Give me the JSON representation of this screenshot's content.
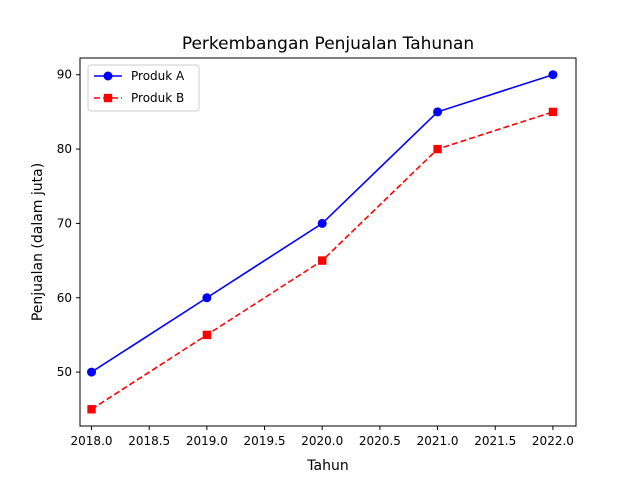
{
  "chart_data": {
    "type": "line",
    "title": "Perkembangan Penjualan Tahunan",
    "xlabel": "Tahun",
    "ylabel": "Penjualan (dalam juta)",
    "x": [
      2018,
      2019,
      2020,
      2021,
      2022
    ],
    "xlim": [
      2017.9,
      2022.2
    ],
    "ylim": [
      42.75,
      92.25
    ],
    "xticks": [
      2018.0,
      2018.5,
      2019.0,
      2019.5,
      2020.0,
      2020.5,
      2021.0,
      2021.5,
      2022.0
    ],
    "xtick_labels": [
      "2018.0",
      "2018.5",
      "2019.0",
      "2019.5",
      "2020.0",
      "2020.5",
      "2021.0",
      "2021.5",
      "2022.0"
    ],
    "yticks": [
      50,
      60,
      70,
      80,
      90
    ],
    "ytick_labels": [
      "50",
      "60",
      "70",
      "80",
      "90"
    ],
    "grid": false,
    "legend_position": "top-left",
    "series": [
      {
        "name": "Produk A",
        "values": [
          50,
          60,
          70,
          85,
          90
        ],
        "color": "#0000ff",
        "line_style": "solid",
        "marker": "circle"
      },
      {
        "name": "Produk B",
        "values": [
          45,
          55,
          65,
          80,
          85
        ],
        "color": "#ff0000",
        "line_style": "dashed",
        "marker": "square"
      }
    ]
  }
}
